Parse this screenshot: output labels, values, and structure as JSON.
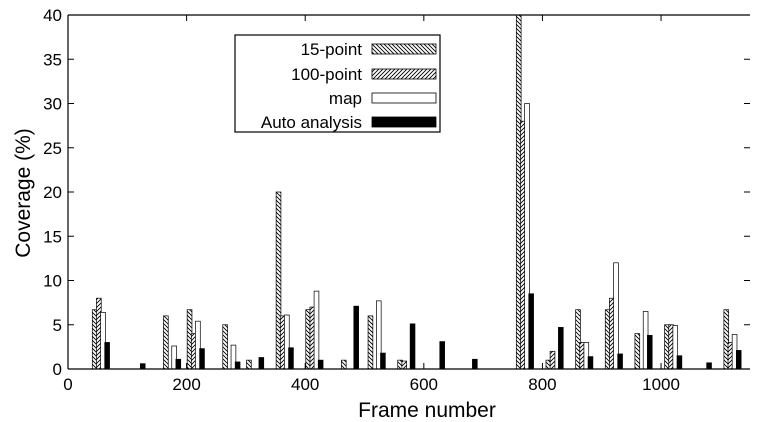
{
  "chart_data": {
    "type": "bar",
    "xlabel": "Frame number",
    "ylabel": "Coverage (%)",
    "xlim": [
      0,
      1150
    ],
    "ylim": [
      0,
      40
    ],
    "xticks": [
      0,
      200,
      400,
      600,
      800,
      1000
    ],
    "yticks": [
      0,
      5,
      10,
      15,
      20,
      25,
      30,
      35,
      40
    ],
    "grid": false,
    "legend_position": "top-center",
    "series": [
      {
        "name": "15-point",
        "style": "hatch-backslash",
        "x": [
          45,
          165,
          205,
          265,
          305,
          355,
          405,
          465,
          510,
          560,
          610,
          760,
          810,
          860,
          910,
          960,
          1010,
          1060,
          1110
        ],
        "values": [
          6.7,
          6.0,
          6.7,
          5.0,
          1.0,
          20.0,
          6.7,
          1.0,
          6.0,
          1.0,
          0.0,
          40.0,
          1.0,
          6.7,
          6.7,
          4.0,
          5.0,
          0.0,
          6.7
        ]
      },
      {
        "name": "100-point",
        "style": "hatch-slash",
        "x": [
          52,
          172,
          212,
          272,
          312,
          362,
          412,
          472,
          517,
          567,
          617,
          767,
          817,
          867,
          917,
          967,
          1017,
          1067,
          1117
        ],
        "values": [
          8.0,
          0.0,
          4.0,
          0.0,
          0.0,
          6.0,
          7.0,
          0.0,
          0.0,
          0.9,
          0.0,
          28.0,
          2.0,
          3.0,
          8.0,
          0.0,
          5.0,
          0.0,
          3.0
        ]
      },
      {
        "name": "map",
        "style": "open",
        "x": [
          59,
          179,
          219,
          279,
          319,
          369,
          419,
          479,
          524,
          574,
          624,
          774,
          824,
          874,
          924,
          974,
          1024,
          1074,
          1124
        ],
        "values": [
          6.4,
          2.6,
          5.4,
          2.7,
          0.0,
          6.1,
          8.8,
          0.0,
          7.7,
          0.0,
          0.0,
          30.0,
          0.0,
          3.0,
          12.0,
          6.5,
          4.9,
          0.0,
          3.9
        ]
      },
      {
        "name": "Auto analysis",
        "style": "solid",
        "x": [
          66,
          126,
          186,
          226,
          286,
          326,
          376,
          426,
          486,
          531,
          581,
          631,
          686,
          781,
          831,
          881,
          931,
          981,
          1031,
          1081,
          1131
        ],
        "values": [
          3.0,
          0.6,
          1.1,
          2.3,
          0.8,
          1.3,
          2.4,
          1.0,
          7.1,
          1.8,
          5.1,
          3.1,
          1.1,
          8.5,
          4.7,
          1.4,
          1.7,
          3.8,
          1.5,
          0.7,
          2.1
        ]
      }
    ]
  },
  "colors": {
    "ink": "#000000",
    "background": "#ffffff"
  }
}
